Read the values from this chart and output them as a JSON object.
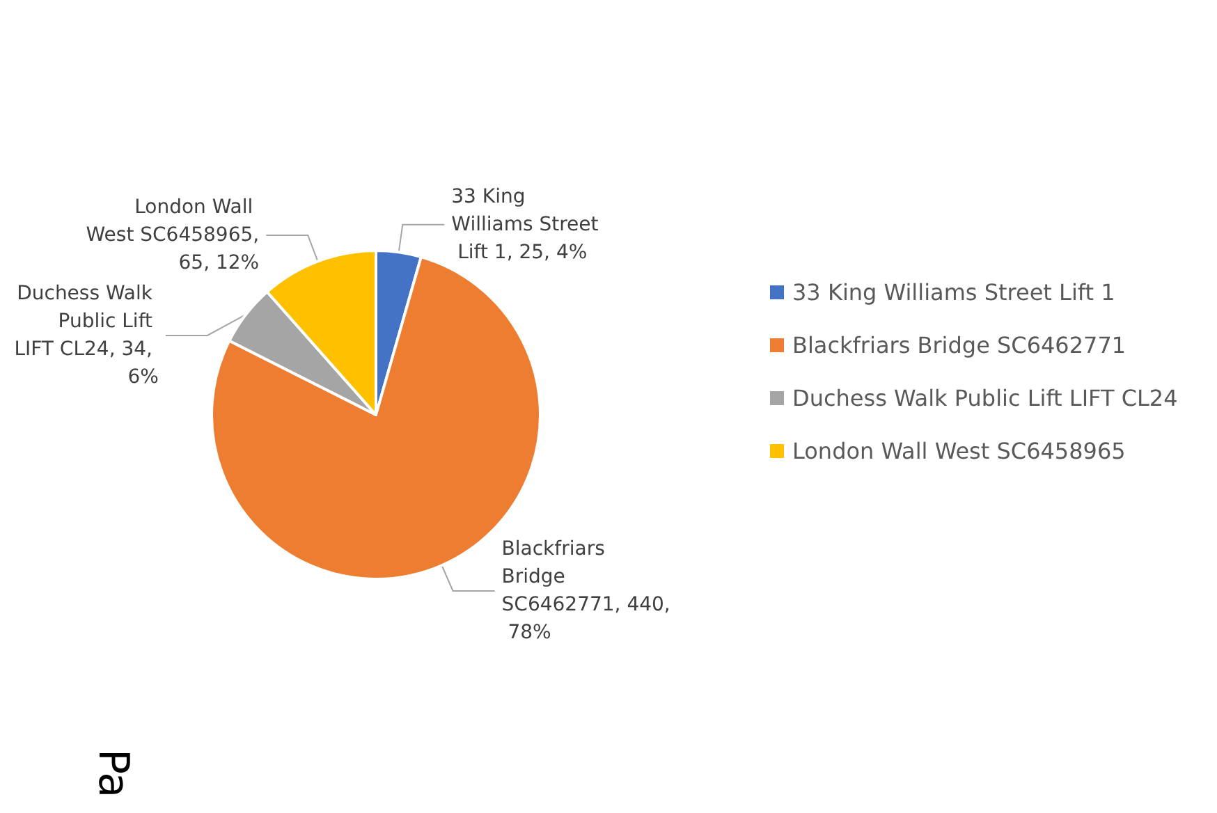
{
  "chart_data": {
    "type": "pie",
    "categories": [
      "33 King Williams Street Lift 1",
      "Blackfriars Bridge SC6462771",
      "Duchess Walk Public Lift LIFT CL24",
      "London Wall West SC6458965"
    ],
    "values": [
      25,
      440,
      34,
      65
    ],
    "value_labels": [
      "33 King Williams Street Lift 1, 25, 4%",
      "Blackfriars Bridge SC6462771, 440, 78%",
      "Duchess Walk Public Lift LIFT CL24, 34, 6%",
      "London Wall West SC6458965, 65, 12%"
    ],
    "colors": [
      "#4472c4",
      "#ed7d31",
      "#a5a5a5",
      "#ffc000"
    ],
    "legend": "right",
    "annotations": [
      "Pa"
    ]
  }
}
